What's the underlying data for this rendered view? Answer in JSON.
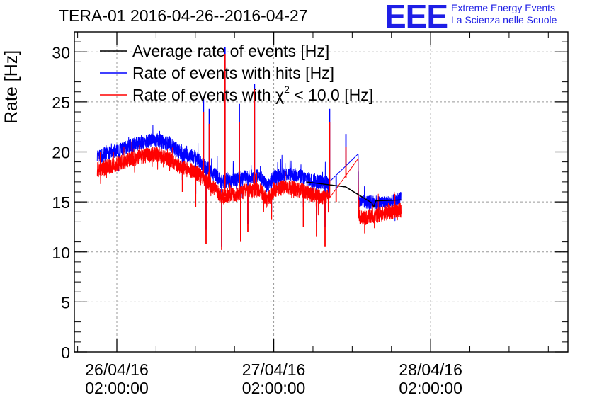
{
  "header": {
    "title": "TERA-01 2016-04-26--2016-04-27",
    "logo_text": "EEE",
    "logo_line1": "Extreme Energy Events",
    "logo_line2": "La Scienza nelle Scuole"
  },
  "chart_data": {
    "type": "line",
    "title": "TERA-01 2016-04-26--2016-04-27",
    "xlabel": "",
    "ylabel": "Rate [Hz]",
    "ylim": [
      0,
      32
    ],
    "xlim_hours": [
      -4.5,
      71.0
    ],
    "grid": true,
    "legend_position": "top-left",
    "y_ticks": [
      "0",
      "5",
      "10",
      "15",
      "20",
      "25",
      "30"
    ],
    "x_ticks": [
      {
        "hour": 2,
        "line1": "26/04/16",
        "line2": "02:00:00"
      },
      {
        "hour": 26,
        "line1": "27/04/16",
        "line2": "02:00:00"
      },
      {
        "hour": 50,
        "line1": "28/04/16",
        "line2": "02:00:00"
      }
    ],
    "legend": [
      {
        "key": "avg",
        "label_pre": "Average rate of events [Hz]",
        "label_sup": "",
        "label_post": "",
        "color": "#000000"
      },
      {
        "key": "hits",
        "label_pre": "Rate of events with hits [Hz]",
        "label_sup": "",
        "label_post": "",
        "color": "#0000ff"
      },
      {
        "key": "chi2",
        "label_pre": "Rate of events with χ",
        "label_sup": "2",
        "label_post": " < 10.0 [Hz]",
        "color": "#ff0000"
      }
    ],
    "series": [
      {
        "name": "Average rate of events [Hz]",
        "color": "#000000",
        "points": [
          [
            31.0,
            17.0
          ],
          [
            37.0,
            16.5
          ],
          [
            41.0,
            14.9
          ],
          [
            41.3,
            14.5
          ],
          [
            41.6,
            15.1
          ],
          [
            45.5,
            15.2
          ]
        ]
      },
      {
        "name": "Rate of events with hits [Hz]",
        "color": "#0000ff",
        "noise": 0.7,
        "points": [
          [
            -1.0,
            19.5
          ],
          [
            3.0,
            20.3
          ],
          [
            6.0,
            21.0
          ],
          [
            8.0,
            21.2
          ],
          [
            10.0,
            20.8
          ],
          [
            12.0,
            19.8
          ],
          [
            14.0,
            19.5
          ],
          [
            15.5,
            18.5
          ],
          [
            17.0,
            17.8
          ],
          [
            18.0,
            17.0
          ],
          [
            20.0,
            17.2
          ],
          [
            22.0,
            17.5
          ],
          [
            24.0,
            17.6
          ],
          [
            25.0,
            16.5
          ],
          [
            26.0,
            17.5
          ],
          [
            28.0,
            17.8
          ],
          [
            30.0,
            17.6
          ],
          [
            31.5,
            17.2
          ],
          [
            33.5,
            17.0
          ],
          [
            34.5,
            16.8
          ],
          [
            38.9,
            20.1
          ],
          [
            39.0,
            15.0
          ],
          [
            40.0,
            15.0
          ],
          [
            42.0,
            14.9
          ],
          [
            44.0,
            15.0
          ],
          [
            45.5,
            15.3
          ]
        ],
        "spikes": [
          [
            12.0,
            17.2
          ],
          [
            14.0,
            15.8
          ],
          [
            15.2,
            25.3
          ],
          [
            15.6,
            12.2
          ],
          [
            16.1,
            24.3
          ],
          [
            18.0,
            10.5
          ],
          [
            18.5,
            30.5
          ],
          [
            20.7,
            24.8
          ],
          [
            20.9,
            12.3
          ],
          [
            22.0,
            12.8
          ],
          [
            23.0,
            26.8
          ],
          [
            25.6,
            14.0
          ],
          [
            30.5,
            14.5
          ],
          [
            32.5,
            13.0
          ],
          [
            33.8,
            12.5
          ],
          [
            34.5,
            24.3
          ],
          [
            35.5,
            16.2
          ],
          [
            37.0,
            21.8
          ]
        ]
      },
      {
        "name": "Rate of events with χ2 < 10.0 [Hz]",
        "color": "#ff0000",
        "noise": 0.75,
        "points": [
          [
            -1.0,
            18.2
          ],
          [
            3.0,
            19.0
          ],
          [
            6.0,
            19.6
          ],
          [
            8.0,
            19.8
          ],
          [
            10.0,
            19.3
          ],
          [
            12.0,
            18.4
          ],
          [
            14.0,
            18.0
          ],
          [
            15.5,
            17.2
          ],
          [
            17.0,
            16.3
          ],
          [
            18.0,
            15.5
          ],
          [
            20.0,
            15.7
          ],
          [
            22.0,
            16.2
          ],
          [
            24.0,
            16.2
          ],
          [
            25.0,
            15.0
          ],
          [
            26.0,
            16.2
          ],
          [
            28.0,
            16.5
          ],
          [
            30.0,
            16.2
          ],
          [
            31.5,
            15.8
          ],
          [
            33.5,
            15.5
          ],
          [
            34.5,
            15.5
          ],
          [
            38.9,
            18.8
          ],
          [
            39.0,
            13.5
          ],
          [
            40.0,
            13.4
          ],
          [
            42.0,
            13.7
          ],
          [
            44.0,
            14.0
          ],
          [
            45.5,
            14.2
          ]
        ],
        "spikes": [
          [
            12.0,
            16.0
          ],
          [
            14.0,
            14.5
          ],
          [
            15.2,
            24.0
          ],
          [
            15.6,
            10.8
          ],
          [
            16.1,
            22.8
          ],
          [
            18.0,
            10.2
          ],
          [
            18.5,
            29.8
          ],
          [
            20.7,
            23.0
          ],
          [
            20.9,
            11.0
          ],
          [
            22.0,
            12.0
          ],
          [
            23.0,
            26.3
          ],
          [
            25.6,
            13.2
          ],
          [
            30.5,
            12.5
          ],
          [
            32.5,
            11.5
          ],
          [
            33.8,
            10.5
          ],
          [
            34.5,
            23.0
          ],
          [
            35.5,
            15.0
          ],
          [
            37.0,
            20.5
          ]
        ]
      }
    ]
  }
}
